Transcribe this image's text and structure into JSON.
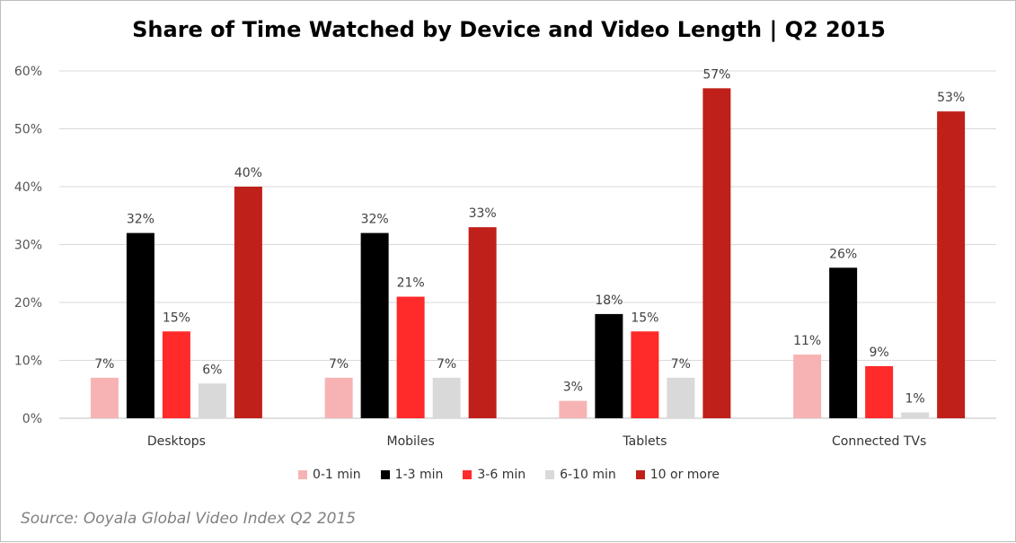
{
  "chart_data": {
    "type": "bar",
    "title": "Share of Time Watched by Device and Video Length | Q2 2015",
    "categories": [
      "Desktops",
      "Mobiles",
      "Tablets",
      "Connected TVs"
    ],
    "series": [
      {
        "name": "0-1 min",
        "color": "#f7b3b3",
        "values": [
          7,
          7,
          3,
          11
        ],
        "labels": [
          "7%",
          "7%",
          "3%",
          "11%"
        ]
      },
      {
        "name": "1-3 min",
        "color": "#000000",
        "values": [
          32,
          32,
          18,
          26
        ],
        "labels": [
          "32%",
          "32%",
          "18%",
          "26%"
        ]
      },
      {
        "name": "3-6 min",
        "color": "#ff2a2a",
        "values": [
          15,
          21,
          15,
          9
        ],
        "labels": [
          "15%",
          "21%",
          "15%",
          "9%"
        ]
      },
      {
        "name": "6-10 min",
        "color": "#d9d9d9",
        "values": [
          6,
          7,
          7,
          1
        ],
        "labels": [
          "6%",
          "7%",
          "7%",
          "1%"
        ]
      },
      {
        "name": "10 or more",
        "color": "#c0201a",
        "values": [
          40,
          33,
          57,
          53
        ],
        "labels": [
          "40%",
          "33%",
          "57%",
          "53%"
        ]
      }
    ],
    "ylim": [
      0,
      60
    ],
    "yticks": [
      0,
      10,
      20,
      30,
      40,
      50,
      60
    ],
    "ytick_labels": [
      "0%",
      "10%",
      "20%",
      "30%",
      "40%",
      "50%",
      "60%"
    ],
    "xlabel": "",
    "ylabel": "",
    "grid": true,
    "legend_position": "bottom"
  },
  "source": "Source: Ooyala Global Video Index Q2 2015"
}
